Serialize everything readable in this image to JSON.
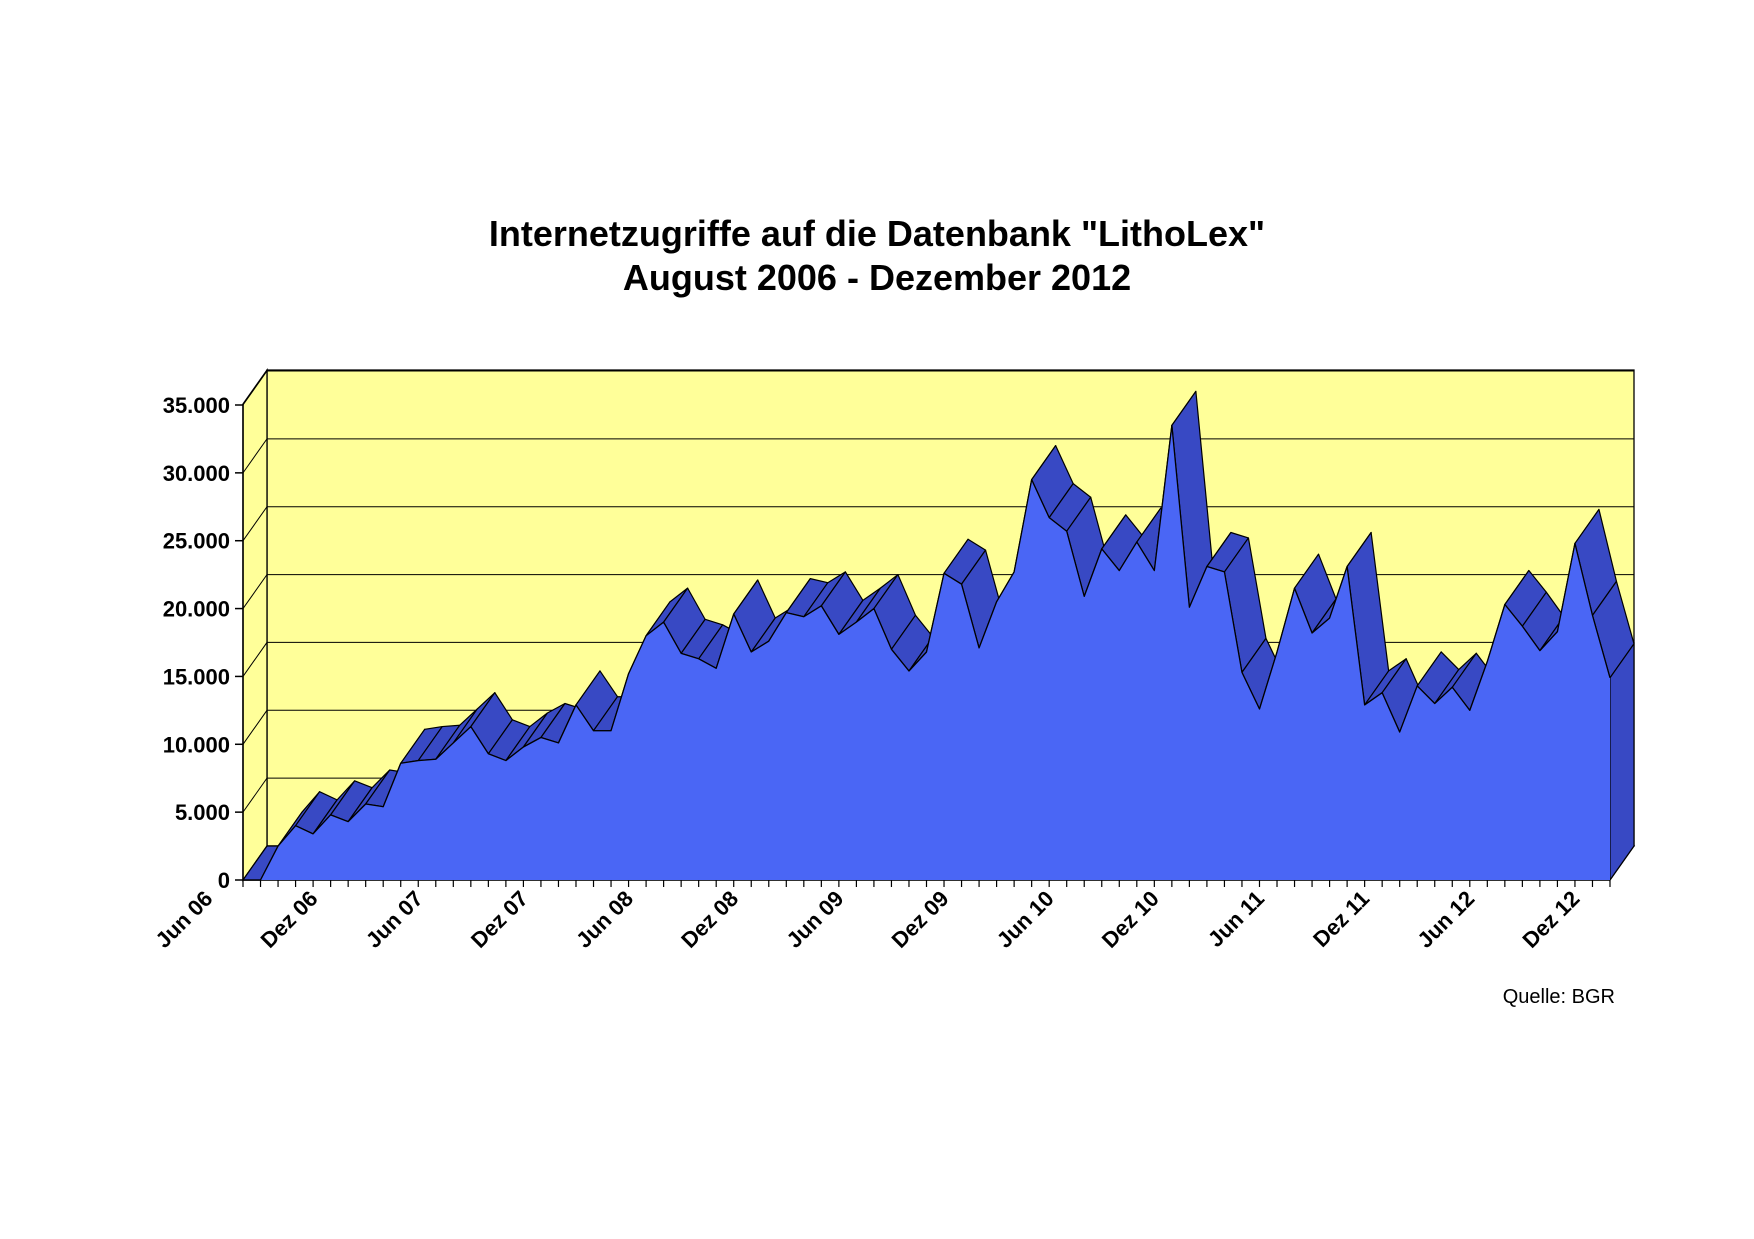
{
  "chart_data": {
    "type": "area",
    "title": "Internetzugriffe auf die Datenbank \"LithoLex\"",
    "subtitle": "August 2006 - Dezember 2012",
    "xlabel": "",
    "ylabel": "",
    "ylim": [
      0,
      35000
    ],
    "grid": true,
    "three_d": true,
    "y_ticks": [
      0,
      5000,
      10000,
      15000,
      20000,
      25000,
      30000,
      35000
    ],
    "y_tick_labels": [
      "0",
      "5.000",
      "10.000",
      "15.000",
      "20.000",
      "25.000",
      "30.000",
      "35.000"
    ],
    "x_tick_labels": [
      "Jun 06",
      "Dez 06",
      "Jun 07",
      "Dez 07",
      "Jun 08",
      "Dez 08",
      "Jun 09",
      "Dez 09",
      "Jun 10",
      "Dez 10",
      "Jun 11",
      "Dez 11",
      "Jun 12",
      "Dez 12"
    ],
    "series": [
      {
        "values": [
          0,
          0,
          2500,
          4000,
          3400,
          4800,
          4300,
          5600,
          5400,
          8600,
          8800,
          8900,
          10100,
          11300,
          9300,
          8800,
          9800,
          10500,
          10100,
          12900,
          11000,
          11000,
          15200,
          18000,
          19000,
          16700,
          16300,
          15600,
          19600,
          16800,
          17600,
          19700,
          19400,
          20200,
          18100,
          19000,
          20000,
          17000,
          15400,
          16800,
          22600,
          21800,
          17100,
          20500,
          22700,
          29500,
          26700,
          25700,
          20900,
          24400,
          22800,
          24900,
          22800,
          33500,
          20100,
          23100,
          22700,
          15300,
          12600,
          16800,
          21500,
          18200,
          19300,
          23100,
          12900,
          13800,
          10900,
          14300,
          13000,
          14200,
          12500,
          16100,
          20300,
          18700,
          16900,
          18300,
          24800,
          19500,
          14900
        ]
      }
    ],
    "colors": {
      "series_front": "#4a66f5",
      "series_side": "#3849c4",
      "wall": "#ffff99",
      "floor": "#9a9a9a",
      "outline": "#000000",
      "grid": "#000000"
    }
  },
  "source_note": "Quelle: BGR"
}
